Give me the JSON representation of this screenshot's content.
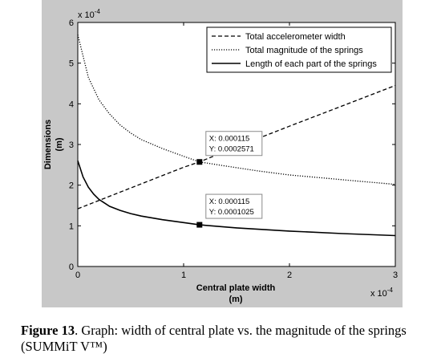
{
  "chart_data": {
    "type": "line",
    "xlabel_line1": "Central plate width",
    "xlabel_line2": "(m)",
    "ylabel_line1": "Dimensions",
    "ylabel_line2": "(m)",
    "x_multiplier": "x 10",
    "x_exponent": "-4",
    "y_multiplier": "x 10",
    "y_exponent": "-4",
    "xlim": [
      0,
      3
    ],
    "ylim": [
      0,
      6
    ],
    "x_ticks": [
      0,
      1,
      2,
      3
    ],
    "y_ticks": [
      0,
      1,
      2,
      3,
      4,
      5,
      6
    ],
    "grid": false,
    "legend_position": "top-right",
    "series": [
      {
        "name": "Total accelerometer width",
        "style": "dashed",
        "x": [
          0,
          0.5,
          1,
          1.15,
          1.5,
          2,
          2.5,
          3
        ],
        "y": [
          1.42,
          1.93,
          2.44,
          2.571,
          2.94,
          3.45,
          3.95,
          4.45
        ]
      },
      {
        "name": "Total magnitude of the springs",
        "style": "dotted",
        "x": [
          0,
          0.1,
          0.2,
          0.3,
          0.4,
          0.5,
          0.6,
          0.8,
          1.0,
          1.15,
          1.4,
          1.7,
          2.0,
          2.3,
          2.6,
          3.0
        ],
        "y": [
          5.7,
          4.65,
          4.1,
          3.75,
          3.48,
          3.28,
          3.12,
          2.9,
          2.71,
          2.571,
          2.47,
          2.35,
          2.25,
          2.18,
          2.11,
          2.02
        ]
      },
      {
        "name": "Length of each part of the springs",
        "style": "solid",
        "x": [
          0,
          0.05,
          0.1,
          0.15,
          0.2,
          0.3,
          0.4,
          0.5,
          0.6,
          0.8,
          1.0,
          1.15,
          1.5,
          2.0,
          2.5,
          3.0
        ],
        "y": [
          2.6,
          2.2,
          1.95,
          1.78,
          1.65,
          1.48,
          1.38,
          1.3,
          1.24,
          1.15,
          1.08,
          1.025,
          0.95,
          0.87,
          0.81,
          0.76
        ]
      }
    ],
    "datatips": [
      {
        "x": 1.15,
        "y": 2.571,
        "label_x": "X: 0.000115",
        "label_y": "Y: 0.0002571"
      },
      {
        "x": 1.15,
        "y": 1.025,
        "label_x": "X: 0.000115",
        "label_y": "Y: 0.0001025"
      }
    ]
  },
  "caption": {
    "label": "Figure 13",
    "text": ". Graph: width of central plate vs. the magnitude of the springs (SUMMiT V™)"
  }
}
